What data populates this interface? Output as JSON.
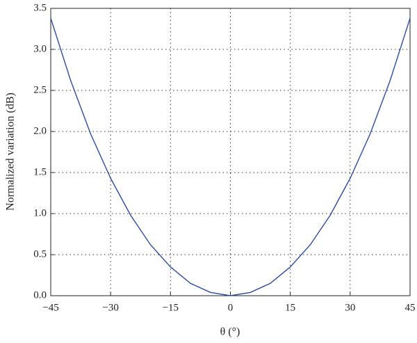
{
  "chart_data": {
    "type": "line",
    "xlabel": "θ (°)",
    "ylabel": "Normalized variation (dB)",
    "x": [
      -45,
      -40,
      -35,
      -30,
      -25,
      -20,
      -15,
      -10,
      -5,
      0,
      5,
      10,
      15,
      20,
      25,
      30,
      35,
      40,
      45
    ],
    "series": [
      {
        "name": "variation",
        "color": "#2b4aa8",
        "values": [
          3.38,
          2.62,
          1.97,
          1.43,
          0.98,
          0.62,
          0.35,
          0.15,
          0.04,
          0,
          0.04,
          0.15,
          0.35,
          0.62,
          0.98,
          1.43,
          1.97,
          2.62,
          3.38
        ]
      }
    ],
    "xlim": [
      -45,
      45
    ],
    "ylim": [
      0,
      3.5
    ],
    "xticks": [
      {
        "value": -45,
        "label": "−45"
      },
      {
        "value": -30,
        "label": "−30"
      },
      {
        "value": -15,
        "label": "−15"
      },
      0,
      15,
      30,
      45
    ],
    "yticks": [
      {
        "value": 0,
        "label": "0.0"
      },
      0.5,
      {
        "value": 1,
        "label": "1.0"
      },
      1.5,
      {
        "value": 2,
        "label": "2.0"
      },
      2.5,
      {
        "value": 3,
        "label": "3.0"
      },
      3.5
    ],
    "grid": true
  }
}
